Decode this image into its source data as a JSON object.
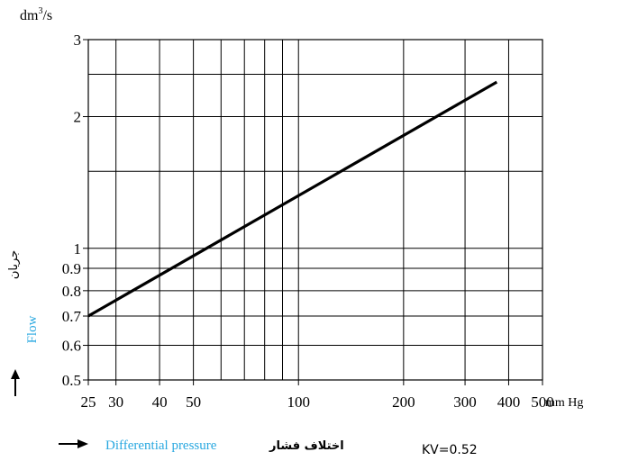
{
  "chart_data": {
    "type": "line",
    "x_scale": "log",
    "y_scale": "log",
    "xlim": [
      25,
      500
    ],
    "ylim": [
      0.5,
      3
    ],
    "grid": true,
    "x_unit": "mm Hg",
    "y_unit_base": "dm",
    "y_unit_exp": "3",
    "y_unit_tail": "/s",
    "xlabel_en": "Differential pressure",
    "xlabel_fa": "اختلاف فشار",
    "ylabel_en": "Flow",
    "ylabel_fa": "جریان",
    "annotation": "KV=0.52",
    "x_ticks": [
      {
        "value": 25,
        "label": "25"
      },
      {
        "value": 30,
        "label": "30"
      },
      {
        "value": 40,
        "label": "40"
      },
      {
        "value": 50,
        "label": "50"
      },
      {
        "value": 100,
        "label": "100"
      },
      {
        "value": 200,
        "label": "200"
      },
      {
        "value": 300,
        "label": "300"
      },
      {
        "value": 400,
        "label": "400"
      },
      {
        "value": 500,
        "label": "500"
      }
    ],
    "x_minor_grid": [
      60,
      70,
      80,
      90
    ],
    "y_ticks": [
      {
        "value": 0.5,
        "label": "0.5"
      },
      {
        "value": 0.6,
        "label": "0.6"
      },
      {
        "value": 0.7,
        "label": "0.7"
      },
      {
        "value": 0.8,
        "label": "0.8"
      },
      {
        "value": 0.9,
        "label": "0.9"
      },
      {
        "value": 1,
        "label": "1"
      },
      {
        "value": 2,
        "label": "2"
      },
      {
        "value": 3,
        "label": "3"
      }
    ],
    "y_minor_grid": [
      1.5,
      2.5
    ],
    "series": [
      {
        "x": [
          25,
          370
        ],
        "y": [
          0.7,
          2.4
        ]
      }
    ],
    "colors": {
      "axis": "#000000",
      "grid": "#000000",
      "line": "#000000",
      "english_label": "#29a8e0"
    }
  }
}
